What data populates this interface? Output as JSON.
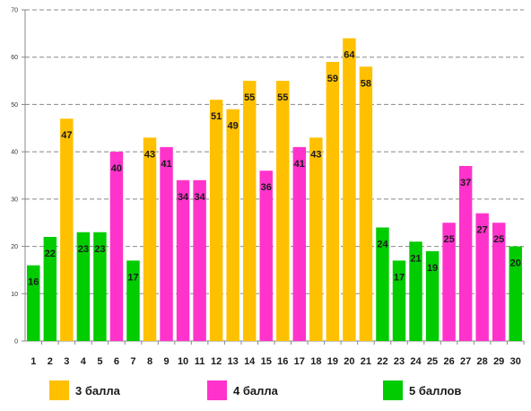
{
  "chart_data": {
    "type": "bar",
    "categories": [
      "1",
      "2",
      "3",
      "4",
      "5",
      "6",
      "7",
      "8",
      "9",
      "10",
      "11",
      "12",
      "13",
      "14",
      "15",
      "16",
      "17",
      "18",
      "19",
      "20",
      "21",
      "22",
      "23",
      "24",
      "25",
      "26",
      "27",
      "28",
      "29",
      "30"
    ],
    "values": [
      16,
      22,
      47,
      23,
      23,
      40,
      17,
      43,
      41,
      34,
      34,
      51,
      49,
      55,
      36,
      55,
      41,
      43,
      59,
      64,
      58,
      24,
      17,
      21,
      19,
      25,
      37,
      27,
      25,
      20
    ],
    "groups": [
      "5 баллов",
      "5 баллов",
      "3 балла",
      "5 баллов",
      "5 баллов",
      "4 балла",
      "5 баллов",
      "3 балла",
      "4 балла",
      "4 балла",
      "4 балла",
      "3 балла",
      "3 балла",
      "3 балла",
      "4 балла",
      "3 балла",
      "4 балла",
      "3 балла",
      "3 балла",
      "3 балла",
      "3 балла",
      "5 баллов",
      "5 баллов",
      "5 баллов",
      "5 баллов",
      "4 балла",
      "4 балла",
      "4 балла",
      "4 балла",
      "5 баллов"
    ],
    "legend": [
      {
        "name": "3 балла",
        "color": "#FFC000"
      },
      {
        "name": "4 балла",
        "color": "#FF33CC"
      },
      {
        "name": "5 баллов",
        "color": "#00CC00"
      }
    ],
    "yticks": [
      0,
      10,
      20,
      30,
      40,
      50,
      60,
      70
    ],
    "ylim": [
      0,
      70
    ],
    "grid": true,
    "legend_position": "bottom",
    "title": "",
    "xlabel": "",
    "ylabel": ""
  }
}
